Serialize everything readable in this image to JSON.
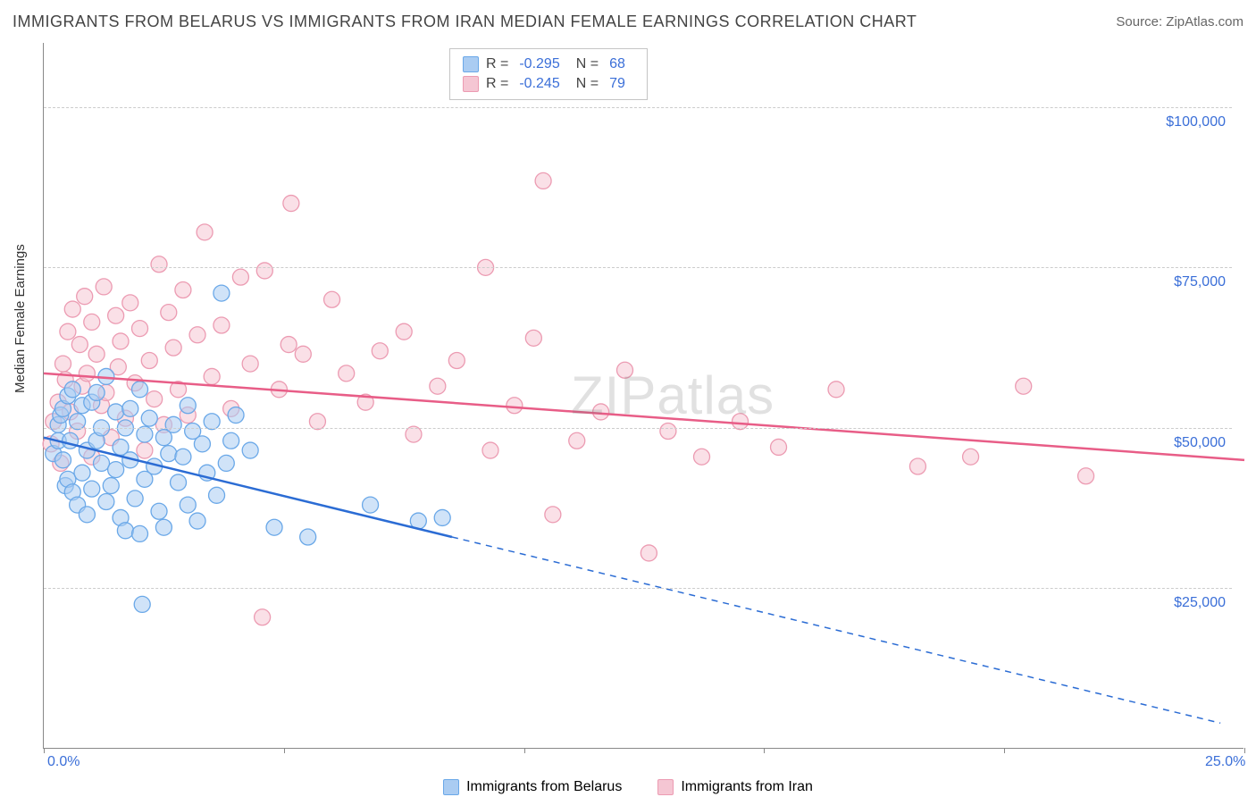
{
  "header": {
    "title": "IMMIGRANTS FROM BELARUS VS IMMIGRANTS FROM IRAN MEDIAN FEMALE EARNINGS CORRELATION CHART",
    "source_prefix": "Source: ",
    "source": "ZipAtlas.com"
  },
  "watermark": "ZIPatlas",
  "chart": {
    "type": "scatter-with-regression",
    "ylabel": "Median Female Earnings",
    "xlim": [
      0,
      25
    ],
    "ylim": [
      0,
      110000
    ],
    "x_ticks": [
      0,
      5,
      10,
      15,
      20,
      25
    ],
    "x_tick_labels_shown": {
      "0": "0.0%",
      "25": "25.0%"
    },
    "y_gridlines": [
      25000,
      50000,
      75000,
      100000
    ],
    "y_tick_labels": [
      "$25,000",
      "$50,000",
      "$75,000",
      "$100,000"
    ],
    "background_color": "#ffffff",
    "grid_color": "#cccccc",
    "axis_color": "#888888",
    "tick_label_color": "#3b6fd8",
    "series": [
      {
        "name": "Immigrants from Belarus",
        "color_fill": "#aaccf2",
        "color_stroke": "#6aa8e8",
        "line_color": "#2b6cd4",
        "R": "-0.295",
        "N": "68",
        "regression": {
          "x1": 0,
          "y1": 48500,
          "x2_solid": 8.5,
          "y2_solid": 33000,
          "x2_dash": 24.5,
          "y2_dash": 4000
        },
        "points": [
          [
            0.2,
            46000
          ],
          [
            0.3,
            48000
          ],
          [
            0.3,
            50500
          ],
          [
            0.35,
            52000
          ],
          [
            0.4,
            45000
          ],
          [
            0.4,
            53000
          ],
          [
            0.45,
            41000
          ],
          [
            0.5,
            55000
          ],
          [
            0.5,
            42000
          ],
          [
            0.55,
            48000
          ],
          [
            0.6,
            40000
          ],
          [
            0.6,
            56000
          ],
          [
            0.7,
            38000
          ],
          [
            0.7,
            51000
          ],
          [
            0.8,
            53500
          ],
          [
            0.8,
            43000
          ],
          [
            0.9,
            46500
          ],
          [
            0.9,
            36500
          ],
          [
            1.0,
            54000
          ],
          [
            1.0,
            40500
          ],
          [
            1.1,
            48000
          ],
          [
            1.1,
            55500
          ],
          [
            1.2,
            50000
          ],
          [
            1.2,
            44500
          ],
          [
            1.3,
            58000
          ],
          [
            1.3,
            38500
          ],
          [
            1.4,
            41000
          ],
          [
            1.5,
            43500
          ],
          [
            1.5,
            52500
          ],
          [
            1.6,
            47000
          ],
          [
            1.6,
            36000
          ],
          [
            1.7,
            34000
          ],
          [
            1.7,
            50000
          ],
          [
            1.8,
            45000
          ],
          [
            1.8,
            53000
          ],
          [
            1.9,
            39000
          ],
          [
            2.0,
            56000
          ],
          [
            2.0,
            33500
          ],
          [
            2.05,
            22500
          ],
          [
            2.1,
            49000
          ],
          [
            2.1,
            42000
          ],
          [
            2.2,
            51500
          ],
          [
            2.3,
            44000
          ],
          [
            2.4,
            37000
          ],
          [
            2.5,
            48500
          ],
          [
            2.5,
            34500
          ],
          [
            2.6,
            46000
          ],
          [
            2.7,
            50500
          ],
          [
            2.8,
            41500
          ],
          [
            2.9,
            45500
          ],
          [
            3.0,
            38000
          ],
          [
            3.0,
            53500
          ],
          [
            3.1,
            49500
          ],
          [
            3.2,
            35500
          ],
          [
            3.3,
            47500
          ],
          [
            3.4,
            43000
          ],
          [
            3.5,
            51000
          ],
          [
            3.6,
            39500
          ],
          [
            3.7,
            71000
          ],
          [
            3.8,
            44500
          ],
          [
            3.9,
            48000
          ],
          [
            4.0,
            52000
          ],
          [
            4.3,
            46500
          ],
          [
            4.8,
            34500
          ],
          [
            5.5,
            33000
          ],
          [
            6.8,
            38000
          ],
          [
            7.8,
            35500
          ],
          [
            8.3,
            36000
          ]
        ]
      },
      {
        "name": "Immigrants from Iran",
        "color_fill": "#f5c6d3",
        "color_stroke": "#ec9bb2",
        "line_color": "#e85d87",
        "R": "-0.245",
        "N": "79",
        "regression": {
          "x1": 0,
          "y1": 58500,
          "x2_solid": 25,
          "y2_solid": 45000,
          "x2_dash": 25,
          "y2_dash": 45000
        },
        "points": [
          [
            0.15,
            47500
          ],
          [
            0.2,
            51000
          ],
          [
            0.3,
            54000
          ],
          [
            0.35,
            44500
          ],
          [
            0.4,
            60000
          ],
          [
            0.45,
            57500
          ],
          [
            0.5,
            65000
          ],
          [
            0.55,
            52500
          ],
          [
            0.6,
            68500
          ],
          [
            0.7,
            49500
          ],
          [
            0.75,
            63000
          ],
          [
            0.8,
            56500
          ],
          [
            0.85,
            70500
          ],
          [
            0.9,
            58500
          ],
          [
            1.0,
            45500
          ],
          [
            1.0,
            66500
          ],
          [
            1.1,
            61500
          ],
          [
            1.2,
            53500
          ],
          [
            1.25,
            72000
          ],
          [
            1.3,
            55500
          ],
          [
            1.4,
            48500
          ],
          [
            1.5,
            67500
          ],
          [
            1.55,
            59500
          ],
          [
            1.6,
            63500
          ],
          [
            1.7,
            51500
          ],
          [
            1.8,
            69500
          ],
          [
            1.9,
            57000
          ],
          [
            2.0,
            65500
          ],
          [
            2.1,
            46500
          ],
          [
            2.2,
            60500
          ],
          [
            2.3,
            54500
          ],
          [
            2.4,
            75500
          ],
          [
            2.5,
            50500
          ],
          [
            2.6,
            68000
          ],
          [
            2.7,
            62500
          ],
          [
            2.8,
            56000
          ],
          [
            2.9,
            71500
          ],
          [
            3.0,
            52000
          ],
          [
            3.2,
            64500
          ],
          [
            3.35,
            80500
          ],
          [
            3.5,
            58000
          ],
          [
            3.7,
            66000
          ],
          [
            3.9,
            53000
          ],
          [
            4.1,
            73500
          ],
          [
            4.3,
            60000
          ],
          [
            4.55,
            20500
          ],
          [
            4.6,
            74500
          ],
          [
            4.9,
            56000
          ],
          [
            5.1,
            63000
          ],
          [
            5.15,
            85000
          ],
          [
            5.4,
            61500
          ],
          [
            5.7,
            51000
          ],
          [
            6.0,
            70000
          ],
          [
            6.3,
            58500
          ],
          [
            6.7,
            54000
          ],
          [
            7.0,
            62000
          ],
          [
            7.5,
            65000
          ],
          [
            7.7,
            49000
          ],
          [
            8.2,
            56500
          ],
          [
            8.6,
            60500
          ],
          [
            9.2,
            75000
          ],
          [
            9.3,
            46500
          ],
          [
            9.8,
            53500
          ],
          [
            10.2,
            64000
          ],
          [
            10.4,
            88500
          ],
          [
            10.6,
            36500
          ],
          [
            11.1,
            48000
          ],
          [
            11.6,
            52500
          ],
          [
            12.1,
            59000
          ],
          [
            12.6,
            30500
          ],
          [
            13.0,
            49500
          ],
          [
            13.7,
            45500
          ],
          [
            14.5,
            51000
          ],
          [
            15.3,
            47000
          ],
          [
            16.5,
            56000
          ],
          [
            18.2,
            44000
          ],
          [
            19.3,
            45500
          ],
          [
            20.4,
            56500
          ],
          [
            21.7,
            42500
          ]
        ]
      }
    ],
    "legend_bottom_labels": [
      "Immigrants from Belarus",
      "Immigrants from Iran"
    ]
  }
}
